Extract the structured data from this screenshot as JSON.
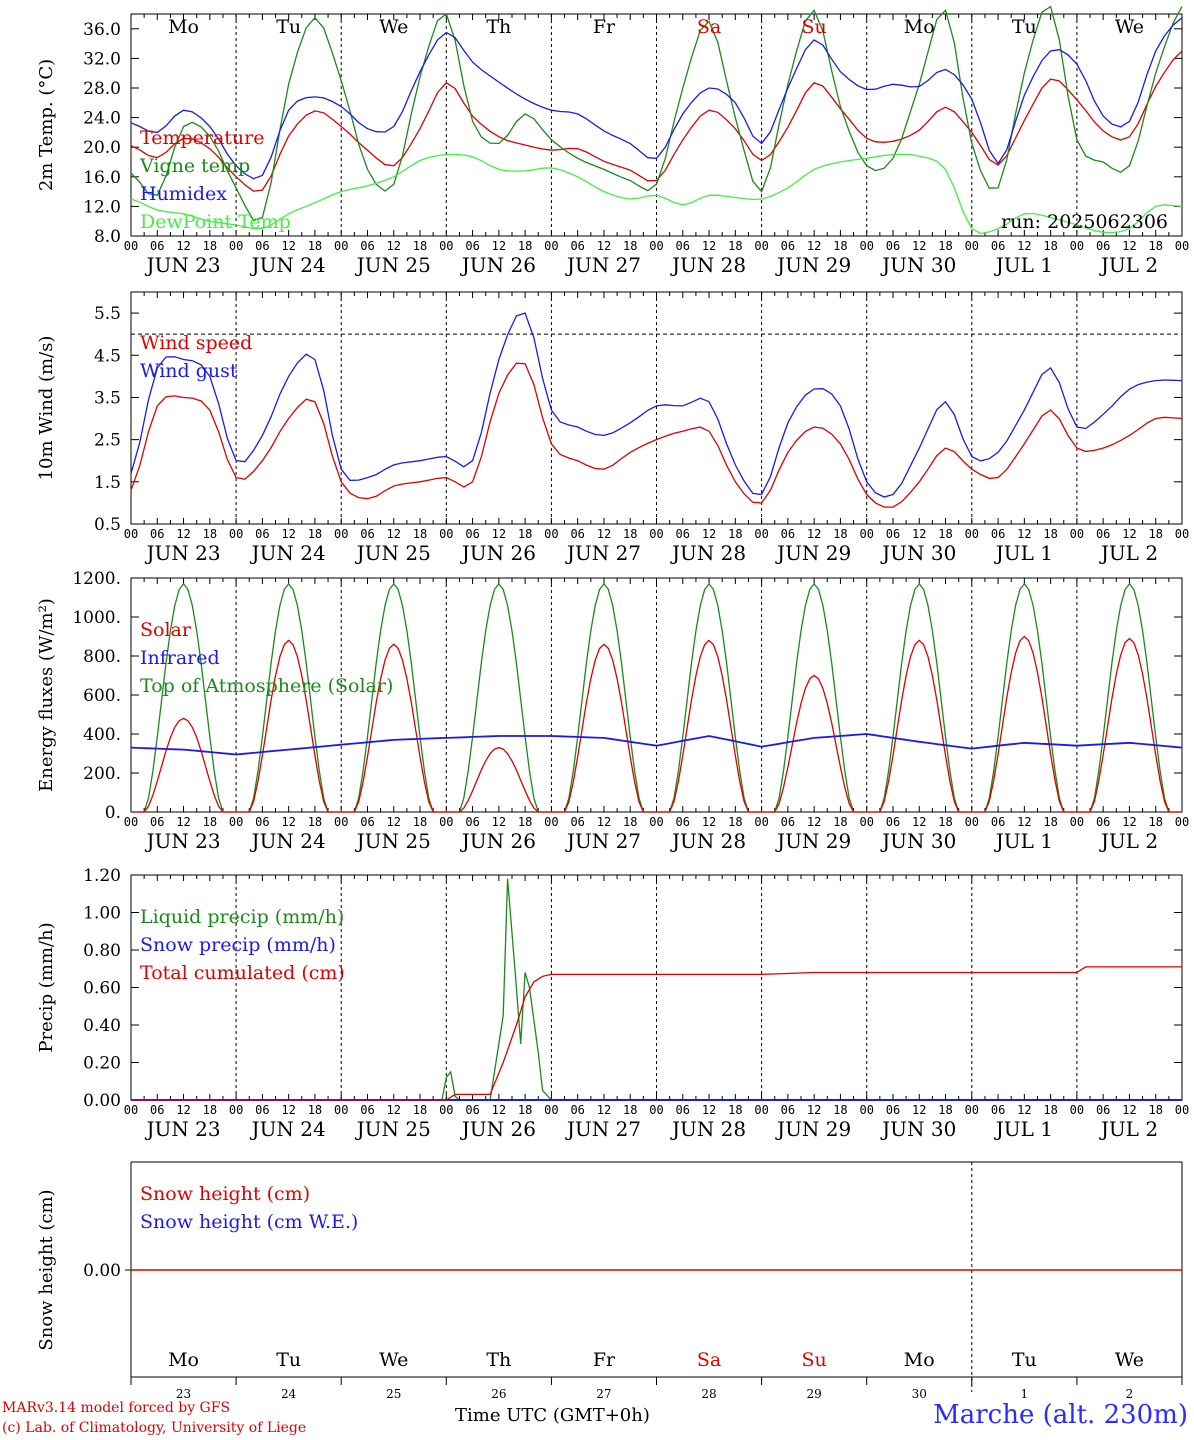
{
  "days": [
    {
      "abbr": "Mo",
      "date": "JUN 23",
      "num": "23",
      "color": "#000000"
    },
    {
      "abbr": "Tu",
      "date": "JUN 24",
      "num": "24",
      "color": "#000000"
    },
    {
      "abbr": "We",
      "date": "JUN 25",
      "num": "25",
      "color": "#000000"
    },
    {
      "abbr": "Th",
      "date": "JUN 26",
      "num": "26",
      "color": "#000000"
    },
    {
      "abbr": "Fr",
      "date": "JUN 27",
      "num": "27",
      "color": "#000000"
    },
    {
      "abbr": "Sa",
      "date": "JUN 28",
      "num": "28",
      "color": "#e00000"
    },
    {
      "abbr": "Su",
      "date": "JUN 29",
      "num": "29",
      "color": "#e00000"
    },
    {
      "abbr": "Mo",
      "date": "JUN 30",
      "num": "30",
      "color": "#000000"
    },
    {
      "abbr": "Tu",
      "date": "JUL  1",
      "num": "1",
      "color": "#000000"
    },
    {
      "abbr": "We",
      "date": "JUL  2",
      "num": "2",
      "color": "#000000"
    }
  ],
  "hour_labels": [
    "00",
    "06",
    "12",
    "18"
  ],
  "footer": {
    "credit_line1": "MARv3.14 model forced by GFS",
    "credit_line2": "(c) Lab. of Climatology, University of Liege",
    "axis_label": "Time UTC (GMT+0h)",
    "station": "Marche (alt. 230m)"
  },
  "chart_data": [
    {
      "type": "line",
      "id": "temp",
      "ylabel": "2m Temp. (°C)",
      "ylim": [
        8,
        38
      ],
      "yticks": [
        "8.0",
        "12.0",
        "16.0",
        "20.0",
        "24.0",
        "28.0",
        "32.0",
        "36.0"
      ],
      "yticks_values": [
        8,
        12,
        16,
        20,
        24,
        28,
        32,
        36
      ],
      "annotation": "run: 2025062306",
      "x_hours": [
        0,
        6,
        12,
        18,
        24,
        30,
        36,
        42,
        48,
        54,
        60,
        66,
        72,
        78,
        84,
        90,
        96,
        102,
        108,
        114,
        120,
        126,
        132,
        138,
        144,
        150,
        156,
        162,
        168,
        174,
        180,
        186,
        192,
        198,
        204,
        210,
        216,
        222,
        228,
        234,
        240
      ],
      "series": [
        {
          "name": "Temperature",
          "color": "#e00000",
          "values": [
            20.2,
            18.6,
            21.2,
            19.8,
            16.0,
            14.2,
            21.5,
            24.9,
            22.8,
            19.6,
            17.5,
            22.5,
            28.7,
            24.2,
            21.4,
            20.3,
            19.6,
            19.8,
            18.1,
            16.9,
            15.5,
            21.0,
            25.0,
            22.5,
            18.2,
            22.7,
            28.7,
            25.2,
            21.2,
            20.8,
            22.3,
            25.4,
            22.0,
            17.6,
            23.6,
            29.2,
            26.4,
            22.2,
            21.4,
            28.2,
            33.0
          ]
        },
        {
          "name": "Vigne temp",
          "color": "#1a8a1a",
          "values": [
            16.5,
            13.5,
            22.8,
            21.5,
            14.5,
            10.5,
            28.5,
            37.5,
            29.0,
            17.0,
            15.0,
            29.5,
            38.0,
            23.5,
            20.5,
            24.5,
            21.0,
            18.5,
            17.0,
            15.5,
            15.0,
            28.0,
            37.0,
            24.0,
            14.0,
            28.5,
            38.5,
            25.5,
            17.5,
            18.5,
            28.5,
            38.5,
            20.5,
            14.5,
            30.0,
            39.0,
            21.0,
            18.0,
            17.5,
            30.0,
            39.0
          ]
        },
        {
          "name": "Humidex",
          "color": "#1a1aee",
          "values": [
            23.3,
            22.0,
            25.0,
            22.8,
            17.5,
            16.2,
            25.0,
            26.8,
            25.5,
            22.5,
            22.8,
            30.2,
            35.5,
            31.5,
            28.8,
            26.5,
            25.0,
            24.5,
            22.2,
            20.5,
            18.5,
            24.5,
            28.0,
            26.0,
            20.5,
            28.0,
            34.5,
            30.2,
            27.8,
            28.5,
            28.2,
            30.5,
            26.5,
            17.8,
            27.0,
            33.0,
            31.2,
            24.2,
            23.5,
            33.0,
            37.5
          ]
        },
        {
          "name": "DewPoint Temp",
          "color": "#44ee44",
          "values": [
            13.0,
            11.5,
            11.0,
            10.0,
            9.5,
            9.0,
            11.0,
            12.5,
            14.0,
            14.8,
            16.0,
            18.2,
            19.0,
            18.7,
            17.0,
            16.8,
            17.2,
            16.0,
            14.0,
            13.0,
            13.5,
            12.2,
            13.5,
            13.2,
            13.0,
            14.5,
            17.0,
            18.0,
            18.5,
            19.0,
            18.8,
            17.0,
            9.0,
            9.0,
            11.0,
            10.5,
            9.5,
            8.5,
            9.0,
            12.0,
            12.0
          ]
        }
      ]
    },
    {
      "type": "line",
      "id": "wind",
      "ylabel": "10m Wind (m/s)",
      "ylim": [
        0.5,
        6.0
      ],
      "yticks": [
        "0.5",
        "1.5",
        "2.5",
        "3.5",
        "4.5",
        "5.5"
      ],
      "yticks_values": [
        0.5,
        1.5,
        2.5,
        3.5,
        4.5,
        5.5
      ],
      "ref_line": 5.0,
      "x_hours": [
        0,
        6,
        12,
        18,
        24,
        30,
        36,
        42,
        48,
        54,
        60,
        66,
        72,
        78,
        84,
        90,
        96,
        102,
        108,
        114,
        120,
        126,
        132,
        138,
        144,
        150,
        156,
        162,
        168,
        174,
        180,
        186,
        192,
        198,
        204,
        210,
        216,
        222,
        228,
        234,
        240
      ],
      "series": [
        {
          "name": "Wind speed",
          "color": "#e00000",
          "values": [
            1.3,
            3.3,
            3.5,
            3.2,
            1.6,
            2.0,
            3.0,
            3.4,
            1.5,
            1.1,
            1.4,
            1.5,
            1.6,
            1.5,
            3.6,
            4.3,
            2.4,
            2.0,
            1.8,
            2.2,
            2.5,
            2.7,
            2.7,
            1.5,
            1.0,
            2.2,
            2.8,
            2.4,
            1.2,
            0.9,
            1.5,
            2.3,
            1.8,
            1.6,
            2.4,
            3.2,
            2.3,
            2.3,
            2.6,
            3.0,
            3.0
          ]
        },
        {
          "name": "Wind gust",
          "color": "#1a1aee",
          "values": [
            1.7,
            4.2,
            4.4,
            4.0,
            2.0,
            2.6,
            4.0,
            4.4,
            1.8,
            1.6,
            1.9,
            2.0,
            2.1,
            2.0,
            4.4,
            5.5,
            3.2,
            2.8,
            2.6,
            2.9,
            3.3,
            3.3,
            3.4,
            1.9,
            1.2,
            2.9,
            3.7,
            3.3,
            1.5,
            1.2,
            2.3,
            3.4,
            2.1,
            2.2,
            3.2,
            4.2,
            2.8,
            3.1,
            3.7,
            3.9,
            3.9
          ]
        }
      ]
    },
    {
      "type": "line",
      "id": "energy",
      "ylabel": "Energy fluxes (W/m²)",
      "ylim": [
        0,
        1200
      ],
      "yticks": [
        "0.",
        "200.",
        "400.",
        "600.",
        "800.",
        "1000.",
        "1200."
      ],
      "yticks_values": [
        0,
        200,
        400,
        600,
        800,
        1000,
        1200
      ],
      "peak_hour": 12,
      "day_length_hours": 18,
      "series": [
        {
          "name": "Solar",
          "color": "#e00000",
          "daily_peaks": [
            480,
            880,
            860,
            330,
            860,
            880,
            700,
            880,
            900,
            890
          ]
        },
        {
          "name": "Infrared",
          "color": "#1a1aee",
          "x_hours": [
            0,
            12,
            24,
            36,
            48,
            60,
            72,
            84,
            96,
            108,
            120,
            132,
            144,
            156,
            168,
            180,
            192,
            204,
            216,
            228,
            240
          ],
          "values": [
            330,
            320,
            295,
            320,
            345,
            370,
            380,
            390,
            390,
            380,
            340,
            390,
            335,
            380,
            400,
            360,
            325,
            355,
            340,
            355,
            330
          ]
        },
        {
          "name": "Top of Atmosphere (Solar)",
          "color": "#1a8a1a",
          "daily_peaks": [
            1170,
            1170,
            1170,
            1170,
            1170,
            1170,
            1170,
            1170,
            1170,
            1170
          ]
        }
      ]
    },
    {
      "type": "line",
      "id": "precip",
      "ylabel": "Precip (mm/h)",
      "ylim": [
        0,
        1.2
      ],
      "yticks": [
        "0.00",
        "0.20",
        "0.40",
        "0.60",
        "0.80",
        "1.00",
        "1.20"
      ],
      "yticks_values": [
        0,
        0.2,
        0.4,
        0.6,
        0.8,
        1.0,
        1.2
      ],
      "series": [
        {
          "name": "Liquid precip (mm/h)",
          "color": "#1a8a1a",
          "x_hours": [
            0,
            71,
            72,
            73,
            74,
            75,
            82,
            85,
            86,
            88,
            89,
            90,
            91,
            93,
            94,
            96,
            98,
            100,
            240
          ],
          "values": [
            0,
            0,
            0.12,
            0.15,
            0.02,
            0,
            0,
            0.45,
            1.18,
            0.6,
            0.3,
            0.68,
            0.6,
            0.25,
            0.05,
            0,
            0,
            0,
            0
          ]
        },
        {
          "name": "Snow precip (mm/h)",
          "color": "#1a1aee",
          "x_hours": [
            0,
            240
          ],
          "values": [
            0,
            0
          ]
        },
        {
          "name": "Total cumulated (cm)",
          "color": "#e00000",
          "x_hours": [
            0,
            72,
            74,
            82,
            85,
            88,
            90,
            92,
            94,
            96,
            104,
            144,
            156,
            216,
            218,
            240
          ],
          "values": [
            0,
            0,
            0.03,
            0.03,
            0.2,
            0.4,
            0.55,
            0.63,
            0.66,
            0.67,
            0.67,
            0.67,
            0.68,
            0.68,
            0.71,
            0.71
          ]
        }
      ]
    },
    {
      "type": "line",
      "id": "snow",
      "ylabel": "Snow height (cm)",
      "ytick": "0.00",
      "series": [
        {
          "name": "Snow height (cm)",
          "color": "#e00000",
          "x_hours": [
            0,
            240
          ],
          "values": [
            0,
            0
          ]
        },
        {
          "name": "Snow height (cm W.E.)",
          "color": "#1a1aee",
          "x_hours": [
            0,
            240
          ],
          "values": [
            0,
            0
          ]
        }
      ]
    }
  ]
}
